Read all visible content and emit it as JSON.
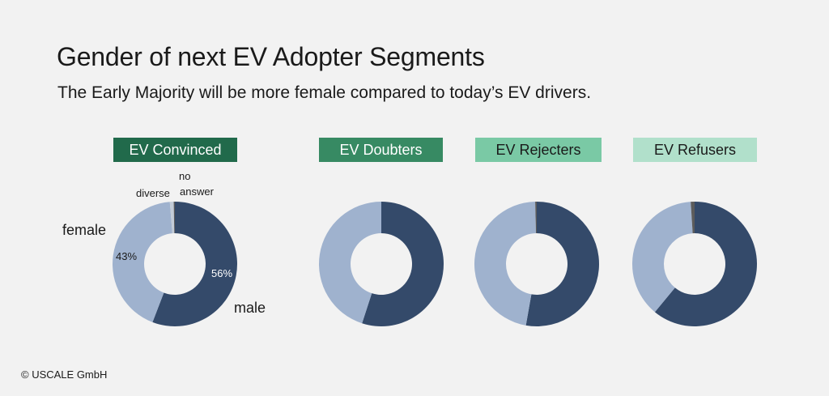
{
  "title": "Gender of next EV Adopter Segments",
  "subtitle": "The Early Majority will be more female compared to today’s EV drivers.",
  "copyright": "© USCALE GmbH",
  "colors": {
    "male": "#344a6a",
    "female": "#9fb2ce",
    "diverse": "#c3ccd8",
    "no_answer": "#5c5c5c"
  },
  "chart_data": [
    {
      "type": "pie",
      "title": "EV Convinced",
      "label_bg": "#216a4b",
      "label_fg": "#ffffff",
      "categories": [
        "male",
        "female",
        "diverse",
        "no answer"
      ],
      "values": [
        56,
        43,
        1,
        0.3
      ],
      "data_labels": {
        "male": "56%",
        "female": "43%"
      }
    },
    {
      "type": "pie",
      "title": "EV Doubters",
      "label_bg": "#378a63",
      "label_fg": "#ffffff",
      "categories": [
        "male",
        "female",
        "diverse",
        "no answer"
      ],
      "values": [
        55,
        45,
        0,
        0
      ]
    },
    {
      "type": "pie",
      "title": "EV Rejecters",
      "label_bg": "#7ac9a5",
      "label_fg": "#1a1a1a",
      "categories": [
        "male",
        "female",
        "diverse",
        "no answer"
      ],
      "values": [
        53,
        47,
        0,
        0.4
      ]
    },
    {
      "type": "pie",
      "title": "EV Refusers",
      "label_bg": "#b1e0cb",
      "label_fg": "#1a1a1a",
      "categories": [
        "male",
        "female",
        "diverse",
        "no answer"
      ],
      "values": [
        61,
        38,
        0,
        1
      ]
    }
  ],
  "legend": {
    "female": "female",
    "male": "male",
    "diverse": "diverse",
    "no_answer_line1": "no",
    "no_answer_line2": "answer"
  }
}
